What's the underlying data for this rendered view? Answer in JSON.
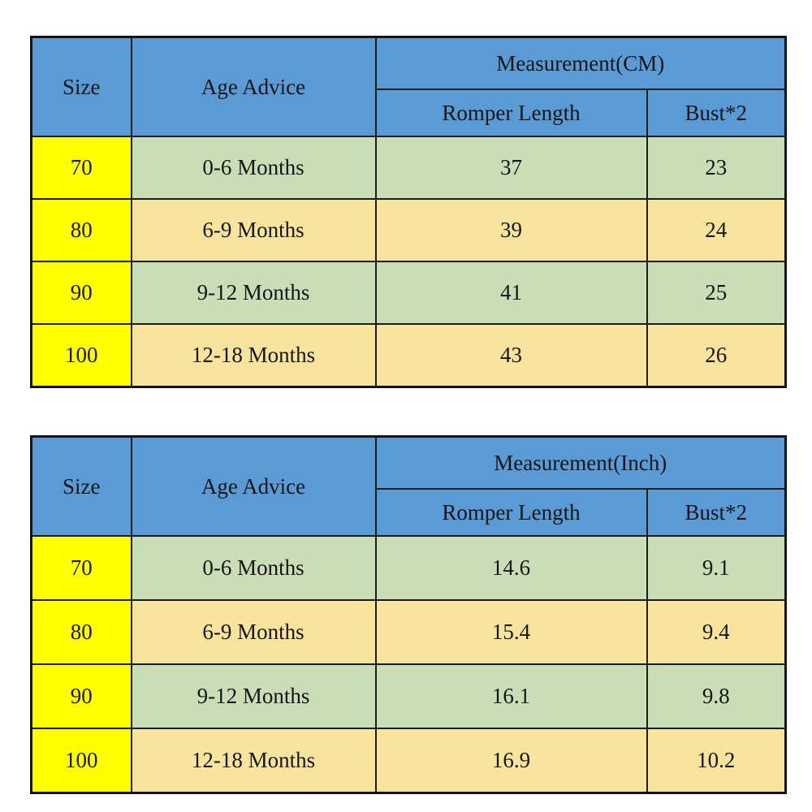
{
  "colors": {
    "header_blue": "#5B9BD5",
    "size_yellow": "#FFFF00",
    "row_green": "#C9DEB7",
    "row_tan": "#F9E49E",
    "border_black": "#1c1c1c",
    "text_dark": "#161616"
  },
  "chart_data": [
    {
      "type": "table",
      "title": "Measurement(CM)",
      "header": {
        "size": "Size",
        "age": "Age Advice",
        "measurement": "Measurement(CM)",
        "sub1": "Romper Length",
        "sub2": "Bust*2"
      },
      "rows": [
        [
          "70",
          "0-6 Months",
          "37",
          "23"
        ],
        [
          "80",
          "6-9 Months",
          "39",
          "24"
        ],
        [
          "90",
          "9-12 Months",
          "41",
          "25"
        ],
        [
          "100",
          "12-18 Months",
          "43",
          "26"
        ]
      ]
    },
    {
      "type": "table",
      "title": "Measurement(Inch)",
      "header": {
        "size": "Size",
        "age": "Age Advice",
        "measurement": "Measurement(Inch)",
        "sub1": "Romper Length",
        "sub2": "Bust*2"
      },
      "rows": [
        [
          "70",
          "0-6 Months",
          "14.6",
          "9.1"
        ],
        [
          "80",
          "6-9 Months",
          "15.4",
          "9.4"
        ],
        [
          "90",
          "9-12 Months",
          "16.1",
          "9.8"
        ],
        [
          "100",
          "12-18 Months",
          "16.9",
          "10.2"
        ]
      ]
    }
  ]
}
